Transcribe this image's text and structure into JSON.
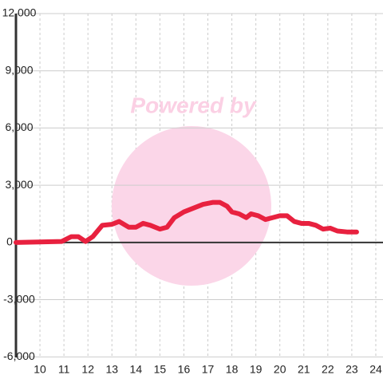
{
  "chart_data": {
    "type": "line",
    "watermark": "Powered by",
    "x": [
      9,
      10.9,
      11.3,
      11.6,
      11.9,
      12.2,
      12.6,
      13.0,
      13.3,
      13.7,
      14.0,
      14.3,
      14.6,
      15.0,
      15.3,
      15.6,
      16.0,
      16.4,
      16.8,
      17.2,
      17.5,
      17.8,
      18.0,
      18.3,
      18.6,
      18.8,
      19.1,
      19.4,
      19.7,
      20.0,
      20.3,
      20.6,
      20.9,
      21.2,
      21.5,
      21.8,
      22.1,
      22.4,
      22.8,
      23.2
    ],
    "values": [
      0,
      50,
      300,
      300,
      50,
      300,
      900,
      950,
      1100,
      800,
      800,
      1000,
      900,
      700,
      800,
      1300,
      1600,
      1800,
      2000,
      2100,
      2100,
      1900,
      1600,
      1500,
      1300,
      1500,
      1400,
      1200,
      1300,
      1400,
      1400,
      1100,
      1000,
      1000,
      900,
      700,
      750,
      600,
      550,
      550
    ],
    "color": "#e8213f",
    "xlim": [
      9,
      24.3
    ],
    "xticks": [
      10,
      11,
      12,
      13,
      14,
      15,
      16,
      17,
      18,
      19,
      20,
      21,
      22,
      23,
      24
    ],
    "ylim": [
      -6700,
      12000
    ],
    "yticks": [
      {
        "value": 12000,
        "label": "12,000"
      },
      {
        "value": 9000,
        "label": "9,000"
      },
      {
        "value": 6000,
        "label": "6,000"
      },
      {
        "value": 3000,
        "label": "3,000"
      },
      0,
      {
        "value": -3000,
        "label": "-3,000"
      },
      {
        "value": -6000,
        "label": "-6,000"
      }
    ],
    "grid": true
  }
}
